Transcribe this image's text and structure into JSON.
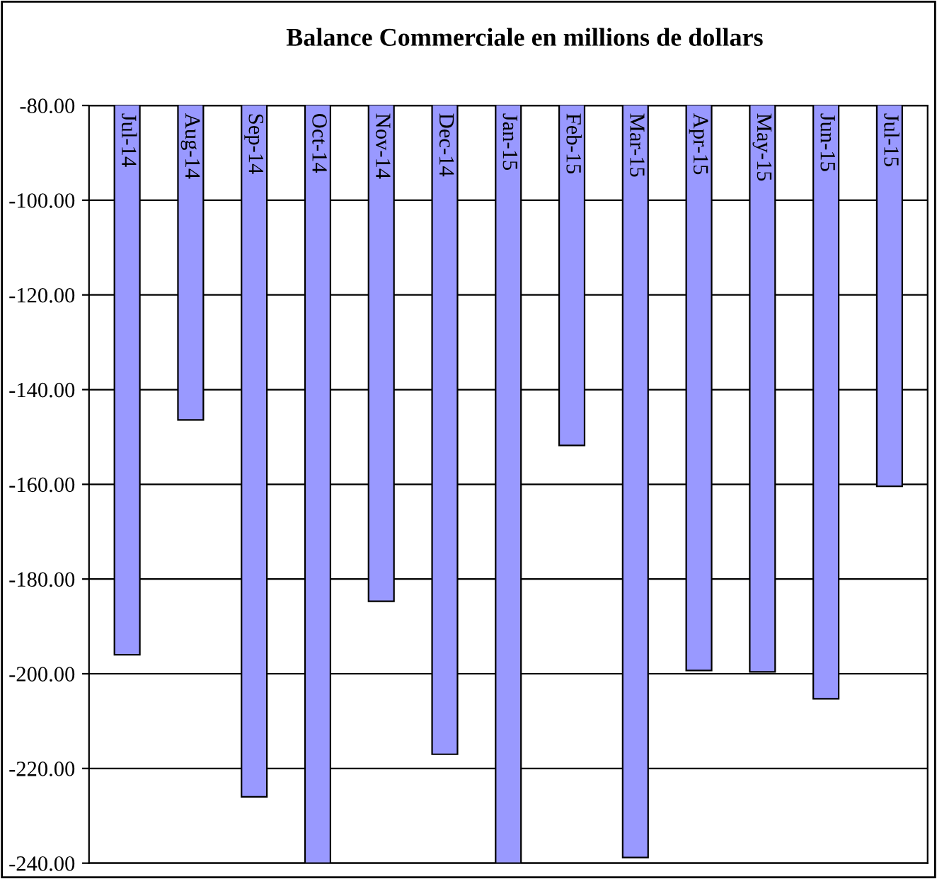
{
  "chart_data": {
    "type": "bar",
    "title": "Balance Commerciale en millions de dollars",
    "categories": [
      "Jul-14",
      "Aug-14",
      "Sep-14",
      "Oct-14",
      "Nov-14",
      "Dec-14",
      "Jan-15",
      "Feb-15",
      "Mar-15",
      "Apr-15",
      "May-15",
      "Jun-15",
      "Jul-15"
    ],
    "values": [
      -196,
      -146.4,
      -226,
      -240,
      -184.7,
      -217,
      -240,
      -151.8,
      -238.8,
      -199.3,
      -199.6,
      -205.3,
      -160.4
    ],
    "color": "#9999ff",
    "ylim": [
      -240,
      -80
    ],
    "yticks": [
      {
        "value": -80,
        "label": "-80.00"
      },
      {
        "value": -100,
        "label": "-100.00"
      },
      {
        "value": -120,
        "label": "-120.00"
      },
      {
        "value": -140,
        "label": "-140.00"
      },
      {
        "value": -160,
        "label": "-160.00"
      },
      {
        "value": -180,
        "label": "-180.00"
      },
      {
        "value": -200,
        "label": "-200.00"
      },
      {
        "value": -220,
        "label": "-220.00"
      },
      {
        "value": -240,
        "label": "-240.00"
      }
    ],
    "grid": "y"
  }
}
